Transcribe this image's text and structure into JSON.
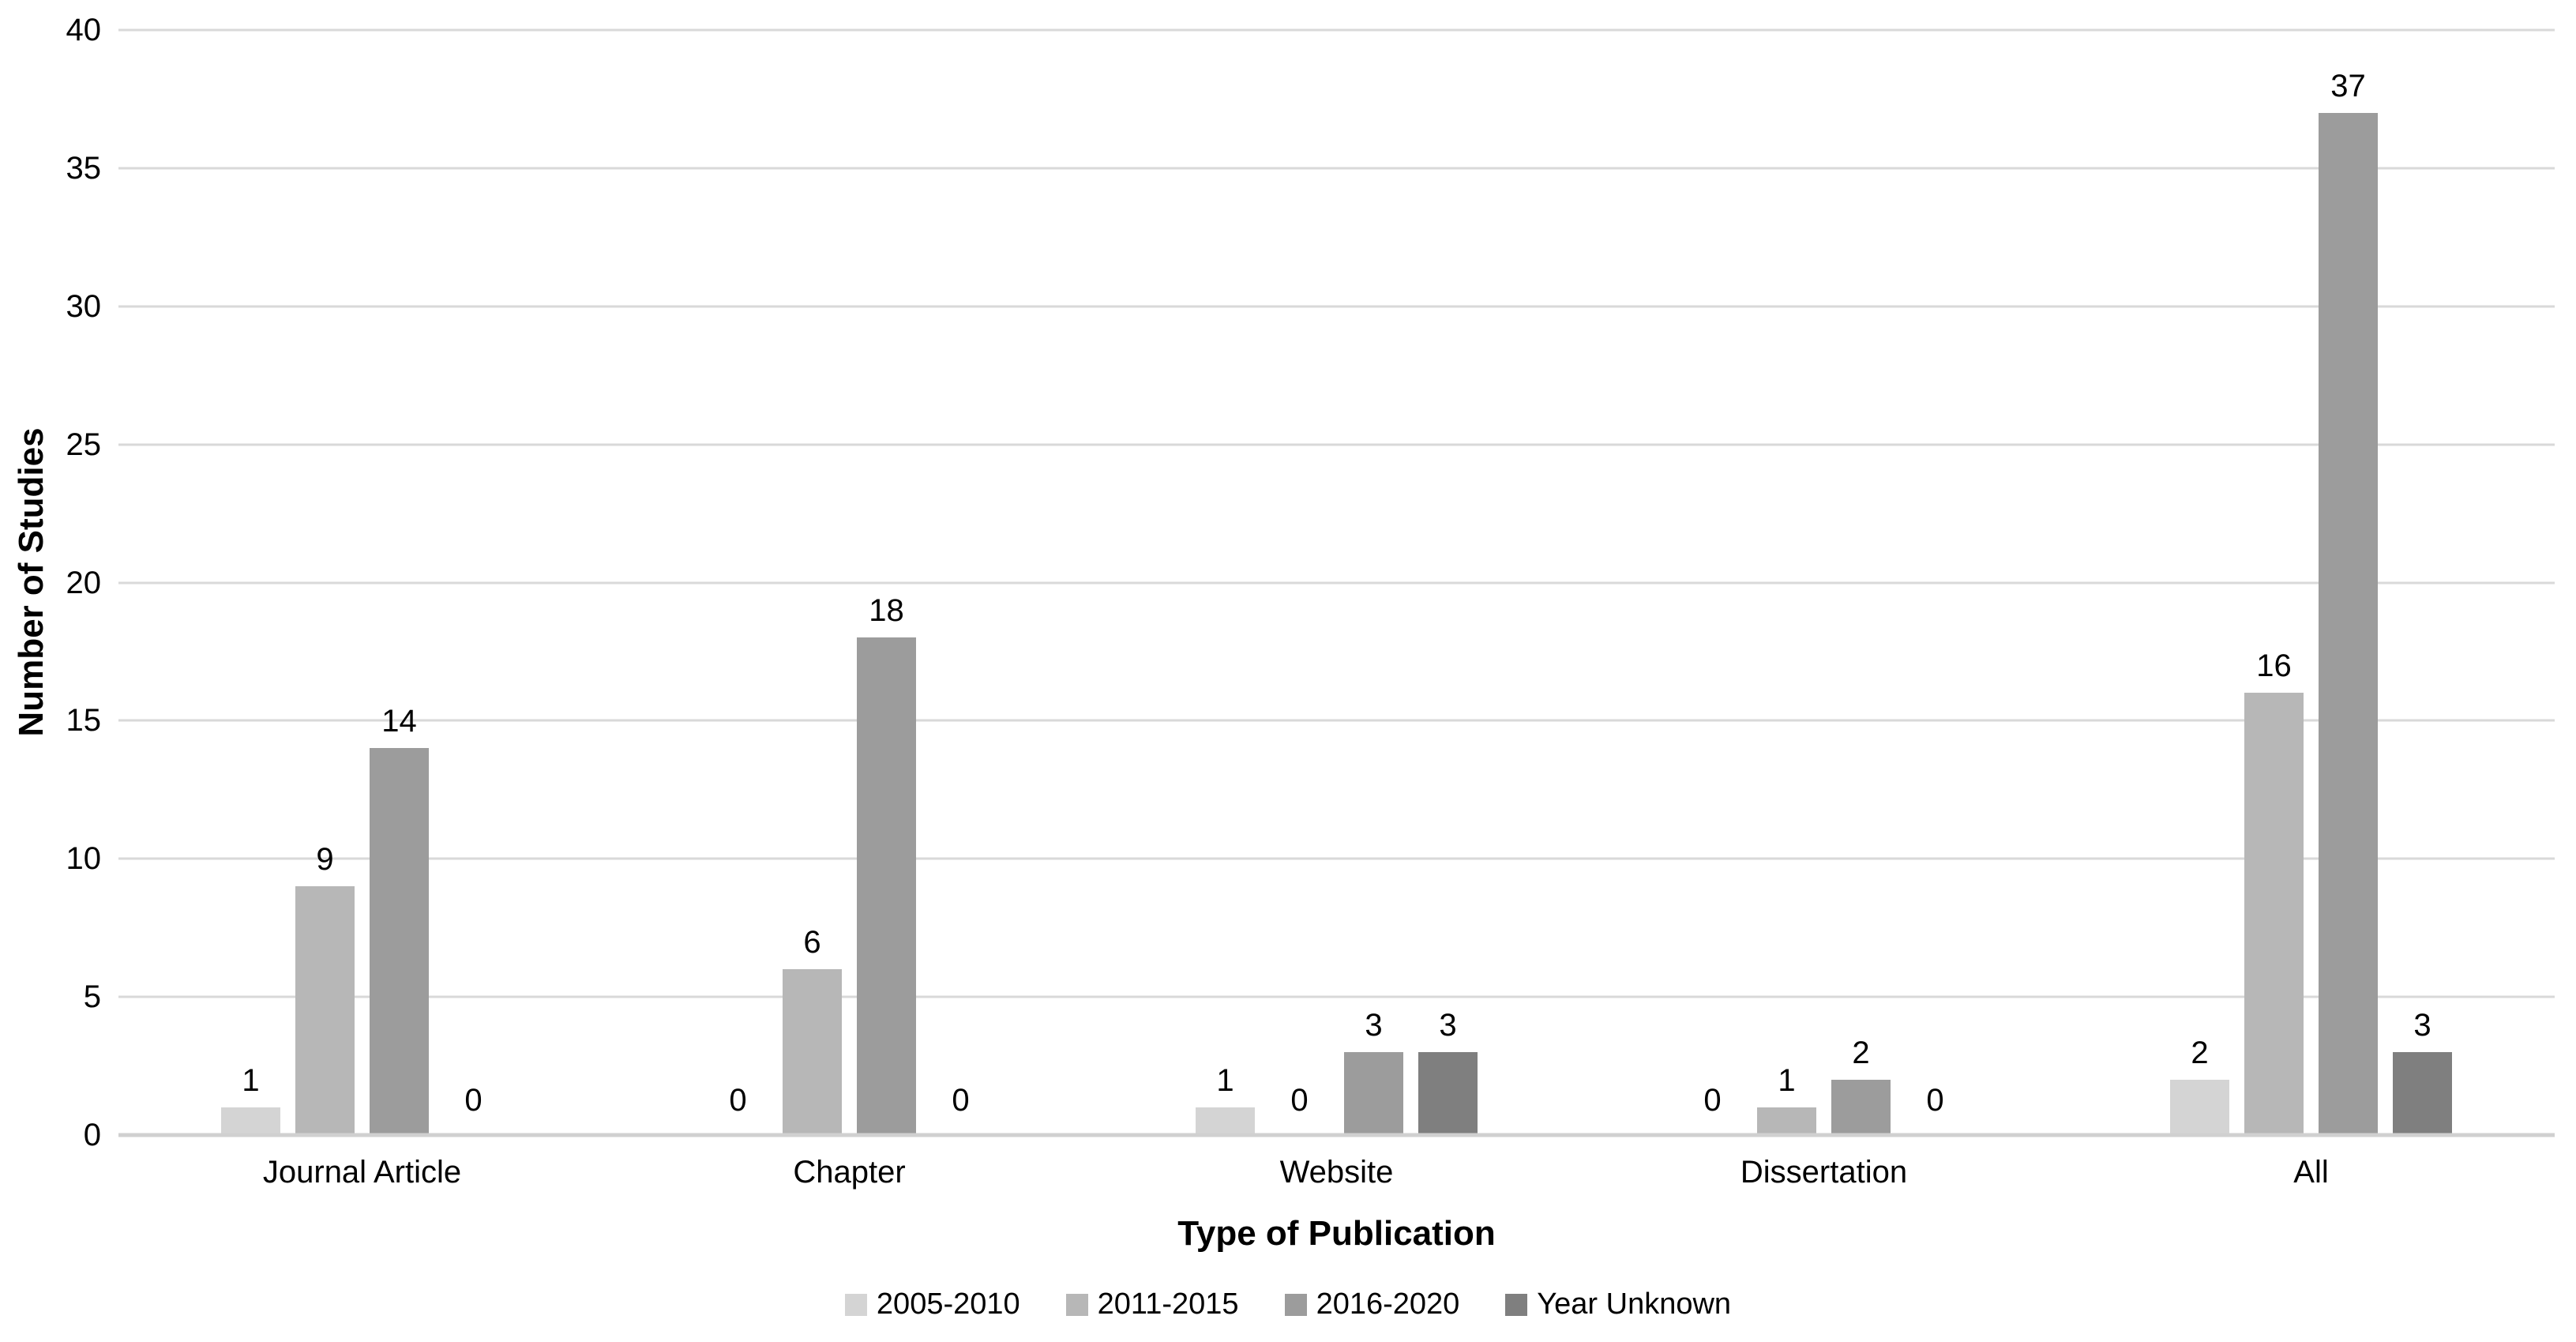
{
  "chart_data": {
    "type": "bar",
    "title": "",
    "categories": [
      "Journal Article",
      "Chapter",
      "Website",
      "Dissertation",
      "All"
    ],
    "series": [
      {
        "name": "2005-2010",
        "color": "#d4d4d4",
        "values": [
          1,
          0,
          1,
          0,
          2
        ]
      },
      {
        "name": "2011-2015",
        "color": "#b7b7b7",
        "values": [
          9,
          6,
          0,
          1,
          16
        ]
      },
      {
        "name": "2016-2020",
        "color": "#9c9c9c",
        "values": [
          14,
          18,
          3,
          2,
          37
        ]
      },
      {
        "name": "Year Unknown",
        "color": "#7f7f7f",
        "values": [
          0,
          0,
          3,
          0,
          3
        ]
      }
    ],
    "xlabel": "Type of Publication",
    "ylabel": "Number of Studies",
    "ylim": [
      0,
      40
    ],
    "ytick_step": 5,
    "yticks": [
      0,
      5,
      10,
      15,
      20,
      25,
      30,
      35,
      40
    ],
    "grid": true,
    "data_labels": true,
    "legend_position": "bottom",
    "colors": {
      "gridline": "#d9d9d9",
      "axis_line": "#d0d0d0",
      "text": "#000000",
      "background": "#ffffff"
    }
  }
}
